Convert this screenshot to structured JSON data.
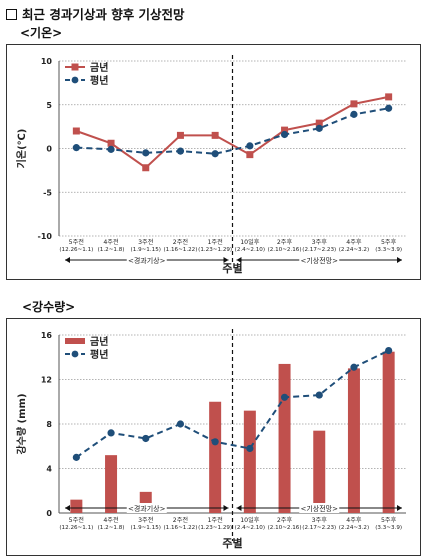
{
  "page": {
    "heading": "최근 경과기상과 향후 기상전망",
    "temp_section_label": "<기온>",
    "precip_section_label": "<강수량>"
  },
  "chart_data": [
    {
      "type": "line",
      "categories": [
        "5주전\n(12.26~1.1)",
        "4주전\n(1.2~1.8)",
        "3주전\n(1.9~1.15)",
        "2주전\n(1.16~1.22)",
        "1주전\n(1.23~1.29)",
        "10일후\n(2.4~2.10)",
        "2주후\n(2.10~2.16)",
        "3주후\n(2.17~2.23)",
        "4주후\n(2.24~3.2)",
        "5주후\n(3.3~3.9)"
      ],
      "series": [
        {
          "name": "금년",
          "values": [
            2.0,
            0.6,
            -2.2,
            1.5,
            1.5,
            -0.7,
            2.1,
            2.9,
            5.1,
            5.9
          ],
          "color": "#c0504d",
          "style": "solid-square"
        },
        {
          "name": "평년",
          "values": [
            0.1,
            -0.1,
            -0.5,
            -0.3,
            -0.6,
            0.3,
            1.6,
            2.3,
            3.9,
            4.6
          ],
          "color": "#1f4e79",
          "style": "dashed-circle"
        }
      ],
      "ylabel": "기온(℃)",
      "xlabel": "주별",
      "ylim": [
        -10,
        10
      ],
      "yticks": [
        10,
        5,
        0,
        -5,
        -10
      ],
      "grid": true,
      "legend": "top-left",
      "annotations": [
        "<경과기상>",
        "<기상전망>"
      ]
    },
    {
      "type": "bar",
      "categories": [
        "5주전\n(12.26~1.1)",
        "4주전\n(1.2~1.8)",
        "3주전\n(1.9~1.15)",
        "2주전\n(1.16~1.22)",
        "1주전\n(1.23~1.29)",
        "10일후\n(2.4~2.10)",
        "2주후\n(2.10~2.16)",
        "3주후\n(2.17~2.23)",
        "4주후\n(2.24~3.2)",
        "5주후\n(3.3~3.9)"
      ],
      "series": [
        {
          "name": "금년",
          "values": [
            1.2,
            5.2,
            1.9,
            0.0,
            10.0,
            9.2,
            13.4,
            7.4,
            13.0,
            14.5
          ],
          "color": "#c0504d",
          "style": "bar"
        },
        {
          "name": "평년",
          "values": [
            5.0,
            7.2,
            6.7,
            8.0,
            6.4,
            5.8,
            10.4,
            10.6,
            13.1,
            14.6
          ],
          "color": "#1f4e79",
          "style": "dashed-circle"
        }
      ],
      "ylabel": "강수량 (mm)",
      "xlabel": "주별",
      "ylim": [
        0,
        16
      ],
      "yticks": [
        0,
        4,
        8,
        12,
        16
      ],
      "grid": true,
      "legend": "top-left",
      "annotations": [
        "<경과기상>",
        "<기상전망>"
      ]
    }
  ]
}
